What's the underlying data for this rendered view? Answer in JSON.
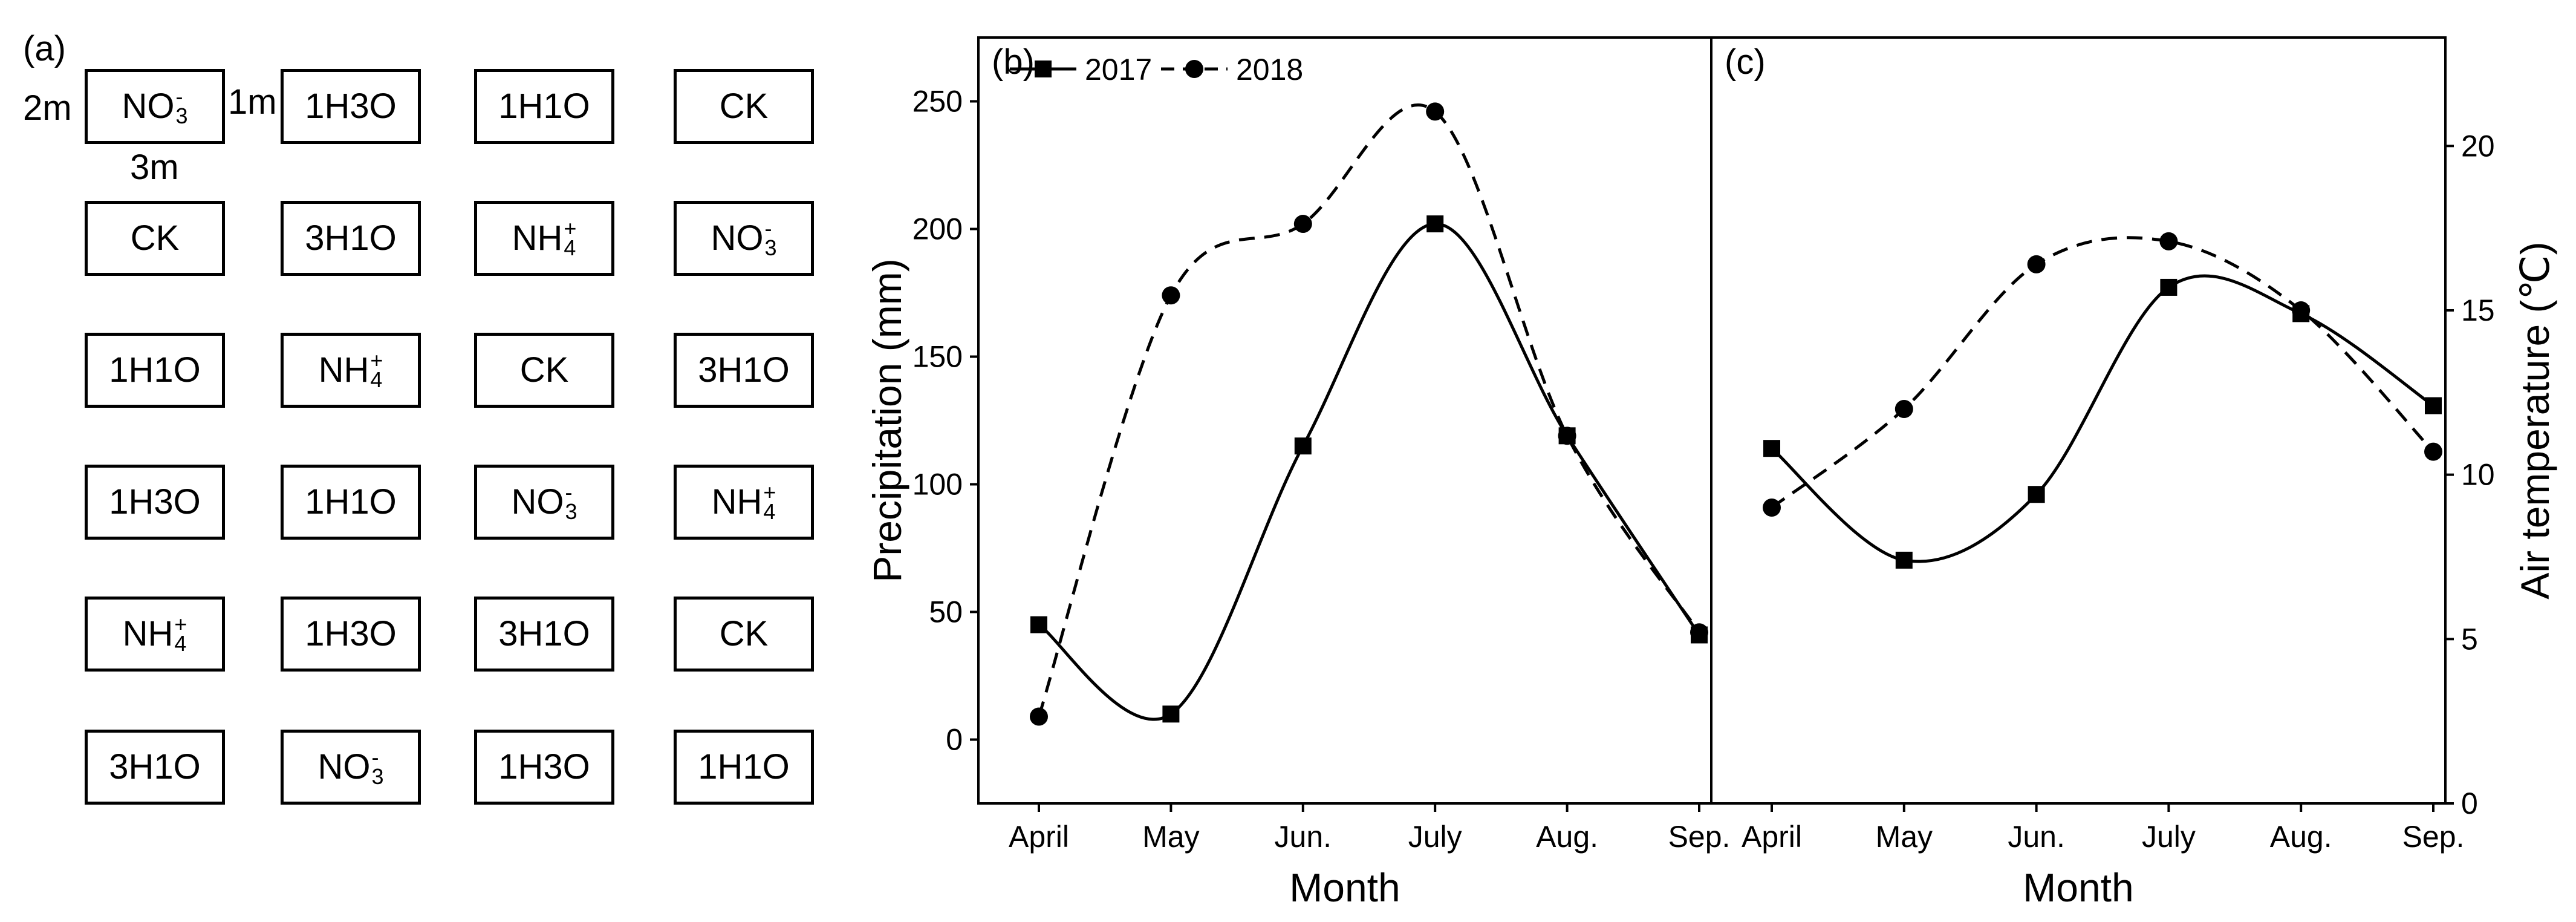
{
  "panel_a": {
    "label": "(a)",
    "dims": {
      "width": "3m",
      "height": "2m",
      "gap": "1m"
    },
    "grid": [
      [
        {
          "base": "NO",
          "sub": "3",
          "sup": "-"
        },
        {
          "base": "1H3O"
        },
        {
          "base": "1H1O"
        },
        {
          "base": "CK"
        }
      ],
      [
        {
          "base": "CK"
        },
        {
          "base": "3H1O"
        },
        {
          "base": "NH",
          "sub": "4",
          "sup": "+"
        },
        {
          "base": "NO",
          "sub": "3",
          "sup": "-"
        }
      ],
      [
        {
          "base": "1H1O"
        },
        {
          "base": "NH",
          "sub": "4",
          "sup": "+"
        },
        {
          "base": "CK"
        },
        {
          "base": "3H1O"
        }
      ],
      [
        {
          "base": "1H3O"
        },
        {
          "base": "1H1O"
        },
        {
          "base": "NO",
          "sub": "3",
          "sup": "-"
        },
        {
          "base": "NH",
          "sub": "4",
          "sup": "+"
        }
      ],
      [
        {
          "base": "NH",
          "sub": "4",
          "sup": "+"
        },
        {
          "base": "1H3O"
        },
        {
          "base": "3H1O"
        },
        {
          "base": "CK"
        }
      ],
      [
        {
          "base": "3H1O"
        },
        {
          "base": "NO",
          "sub": "3",
          "sup": "-"
        },
        {
          "base": "1H3O"
        },
        {
          "base": "1H1O"
        }
      ]
    ]
  },
  "chart_data": [
    {
      "type": "line",
      "panel_label": "(b)",
      "categories": [
        "April",
        "May",
        "Jun.",
        "July",
        "Aug.",
        "Sep."
      ],
      "series": [
        {
          "name": "2017",
          "marker": "square",
          "style": "solid",
          "values": [
            45,
            10,
            115,
            202,
            119,
            41
          ]
        },
        {
          "name": "2018",
          "marker": "circle",
          "style": "dashed",
          "values": [
            9,
            174,
            202,
            246,
            119,
            42
          ]
        }
      ],
      "xlabel": "Month",
      "ylabel": "Precipitation (mm)",
      "ylim": [
        -25,
        275
      ],
      "yticks": [
        0,
        50,
        100,
        150,
        200,
        250
      ],
      "legend": "top-left"
    },
    {
      "type": "line",
      "panel_label": "(c)",
      "categories": [
        "April",
        "May",
        "Jun.",
        "July",
        "Aug.",
        "Sep."
      ],
      "series": [
        {
          "name": "2017",
          "marker": "square",
          "style": "solid",
          "values": [
            10.8,
            7.4,
            9.4,
            15.7,
            14.9,
            12.1
          ]
        },
        {
          "name": "2018",
          "marker": "circle",
          "style": "dashed",
          "values": [
            9.0,
            12.0,
            16.4,
            17.1,
            15.0,
            10.7
          ]
        }
      ],
      "xlabel": "Month",
      "ylabel": "Air temperature (℃)",
      "ylim": [
        0,
        23.3
      ],
      "yticks": [
        0,
        5,
        10,
        15,
        20
      ],
      "yaxis_side": "right"
    }
  ]
}
